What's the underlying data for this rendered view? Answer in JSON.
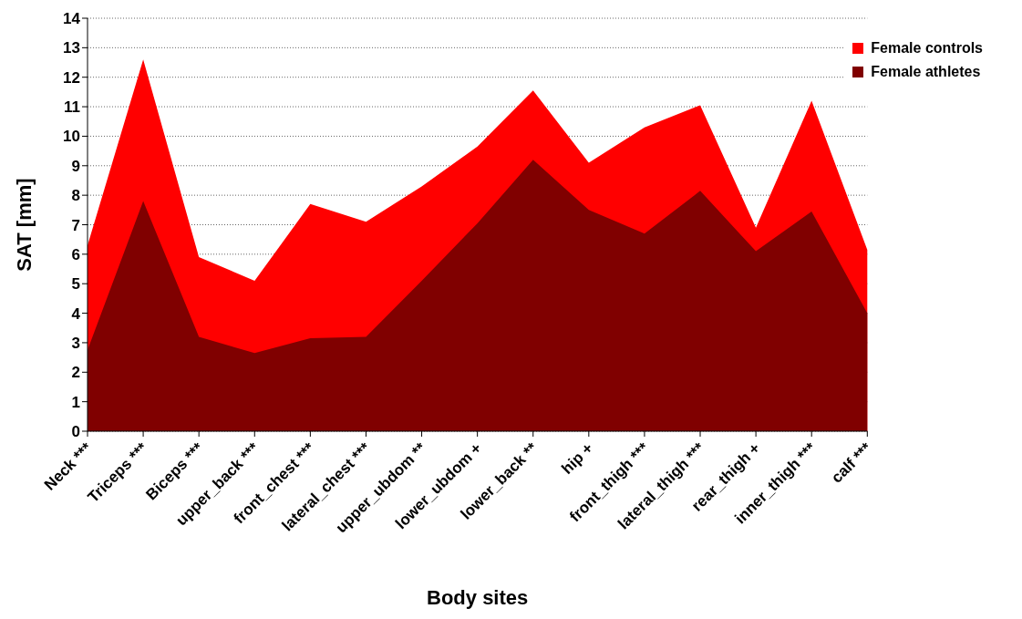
{
  "chart_data": {
    "type": "area",
    "xlabel": "Body sites",
    "ylabel": "SAT [mm]",
    "categories": [
      "Neck ***",
      "Triceps ***",
      "Biceps ***",
      "upper_back ***",
      "front_chest ***",
      "lateral_chest ***",
      "upper_ubdom **",
      "lower_ubdom +",
      "lower_back **",
      "hip +",
      "front_thigh ***",
      "lateral_thigh ***",
      "rear_thigh +",
      "inner_thigh ***",
      "calf ***"
    ],
    "series": [
      {
        "name": "Female controls",
        "color": "#ff0000",
        "values": [
          6.3,
          12.6,
          5.9,
          5.1,
          7.7,
          7.1,
          8.3,
          9.65,
          11.55,
          9.1,
          10.3,
          11.05,
          6.9,
          11.2,
          6.15
        ]
      },
      {
        "name": "Female athletes",
        "color": "#800000",
        "values": [
          2.75,
          7.8,
          3.2,
          2.65,
          3.15,
          3.2,
          5.1,
          7.05,
          9.2,
          7.5,
          6.7,
          8.15,
          6.1,
          7.45,
          4.0
        ]
      }
    ],
    "ylim": [
      0,
      14
    ],
    "yticks": [
      0,
      1,
      2,
      3,
      4,
      5,
      6,
      7,
      8,
      9,
      10,
      11,
      12,
      13,
      14
    ],
    "grid": "y",
    "legend": "top right"
  }
}
